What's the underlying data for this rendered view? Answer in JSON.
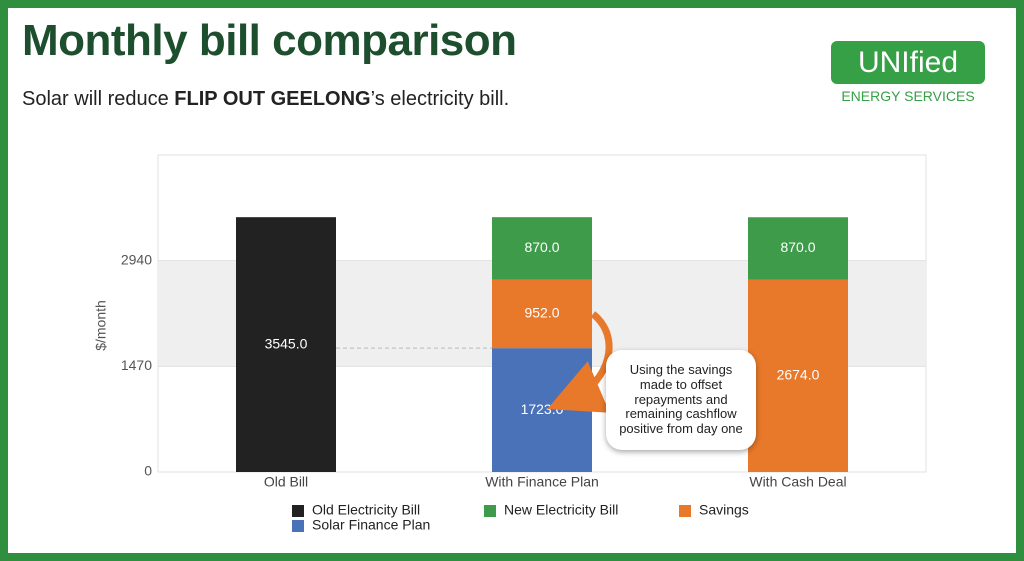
{
  "header": {
    "title": "Monthly bill comparison",
    "subtitle": [
      "Solar will reduce ",
      "FLIP OUT GEELONG",
      "’s electricity bill."
    ],
    "logo": "UNIfied",
    "tagline": "ENERGY SERVICES"
  },
  "chart_data": {
    "type": "bar",
    "stacked": true,
    "ylabel": "$/month",
    "categories": [
      "Old Bill",
      "With Finance Plan",
      "With Cash Deal"
    ],
    "series": [
      {
        "name": "Old Electricity Bill",
        "color": "#222222",
        "values": [
          3545,
          null,
          null
        ],
        "value_labels": [
          "3545.0",
          null,
          null
        ]
      },
      {
        "name": "Solar Finance Plan",
        "color": "#4a72b8",
        "values": [
          null,
          1723,
          null
        ],
        "value_labels": [
          null,
          "1723.0",
          null
        ]
      },
      {
        "name": "Savings",
        "color": "#e8782a",
        "values": [
          null,
          952,
          2674
        ],
        "value_labels": [
          null,
          "952.0",
          "2674.0"
        ]
      },
      {
        "name": "New Electricity Bill",
        "color": "#3d9b4a",
        "values": [
          null,
          870,
          870
        ],
        "value_labels": [
          null,
          "870.0",
          "870.0"
        ]
      }
    ],
    "ylim": [
      0,
      4410
    ],
    "yticks": [
      0,
      1470,
      2940
    ],
    "grid": true,
    "annotation": "Using the savings made to offset repayments and remaining cashflow positive from day one"
  }
}
